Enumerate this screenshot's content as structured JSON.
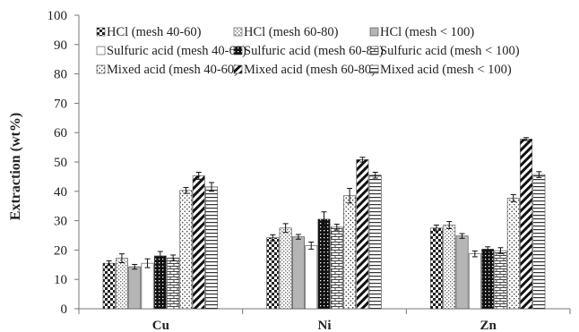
{
  "chart_data": {
    "type": "bar",
    "ylabel": "Extraction (wt%)",
    "xlabel": "",
    "ylim": [
      0,
      100
    ],
    "y_ticks": [
      0,
      10,
      20,
      30,
      40,
      50,
      60,
      70,
      80,
      90,
      100
    ],
    "categories": [
      "Cu",
      "Ni",
      "Zn"
    ],
    "legend_position": "top, 3 columns",
    "grid": false,
    "series": [
      {
        "name": "HCl (mesh 40-60)",
        "pattern": "checker",
        "values": [
          15.5,
          24.2,
          27.5
        ],
        "errors": [
          0.8,
          1.0,
          1.0
        ]
      },
      {
        "name": "HCl (mesh 60-80)",
        "pattern": "light-dots",
        "values": [
          17.2,
          27.5,
          28.5
        ],
        "errors": [
          1.5,
          1.5,
          1.2
        ]
      },
      {
        "name": "HCl (mesh < 100)",
        "pattern": "gray",
        "values": [
          14.3,
          24.5,
          24.8
        ],
        "errors": [
          0.8,
          0.8,
          0.8
        ]
      },
      {
        "name": "Sulfuric acid (mesh 40-60)",
        "pattern": "white",
        "values": [
          15.5,
          21.5,
          18.7
        ],
        "errors": [
          1.5,
          1.2,
          1.0
        ]
      },
      {
        "name": "Sulfuric acid (mesh 60-80)",
        "pattern": "black-dots",
        "values": [
          18.0,
          30.5,
          20.3
        ],
        "errors": [
          1.5,
          2.5,
          0.8
        ]
      },
      {
        "name": "Sulfuric acid (mesh < 100)",
        "pattern": "brick",
        "values": [
          17.3,
          27.8,
          19.8
        ],
        "errors": [
          1.0,
          1.0,
          1.0
        ]
      },
      {
        "name": "Mixed acid (mesh 40-60)",
        "pattern": "sparse-dots",
        "values": [
          40.3,
          38.5,
          37.7
        ],
        "errors": [
          1.0,
          2.5,
          1.2
        ]
      },
      {
        "name": "Mixed acid (mesh 60-80)",
        "pattern": "diagonal",
        "values": [
          45.3,
          50.8,
          57.8
        ],
        "errors": [
          1.2,
          0.8,
          0.5
        ]
      },
      {
        "name": "Mixed acid (mesh < 100)",
        "pattern": "horizontal",
        "values": [
          41.5,
          45.5,
          45.7
        ],
        "errors": [
          1.5,
          1.0,
          1.0
        ]
      }
    ]
  }
}
